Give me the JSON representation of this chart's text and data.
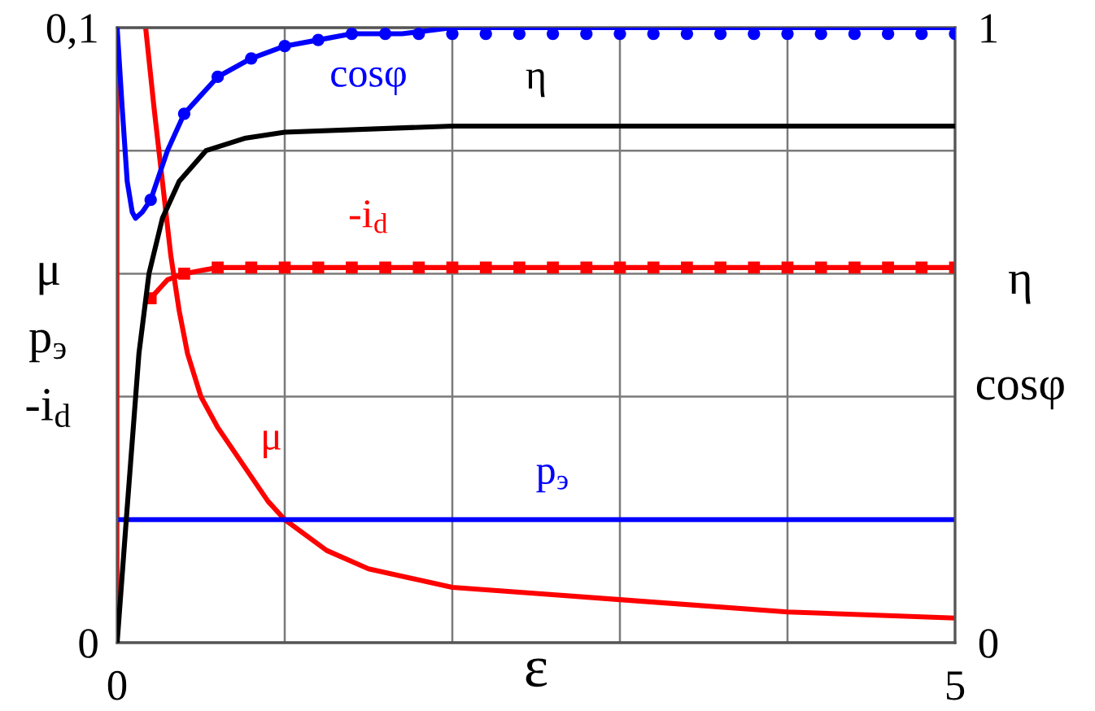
{
  "chart_data": {
    "type": "line",
    "xlabel": "ε",
    "ylabel": "μ\np$_{э}$\n-i$_{d}$",
    "y2label": "η\ncosφ",
    "xlim": [
      0,
      5
    ],
    "xticks": [
      0,
      {
        "value": 1,
        "label": null
      },
      {
        "value": 2,
        "label": null
      },
      {
        "value": 3,
        "label": null
      },
      {
        "value": 4,
        "label": null
      },
      5
    ],
    "ylim": [
      0,
      0.1
    ],
    "yticks": [
      0,
      {
        "value": 0.02,
        "label": null
      },
      {
        "value": 0.04,
        "label": null
      },
      {
        "value": 0.06,
        "label": null
      },
      {
        "value": 0.08,
        "label": null
      },
      {
        "value": 0.1,
        "label": "0,1"
      }
    ],
    "y2lim": [
      0,
      1
    ],
    "y2ticks": [
      0,
      1
    ],
    "grid": true,
    "ref_lines": [
      {
        "axis": "x",
        "value": 0,
        "color": "#ff0000"
      }
    ],
    "series": [
      {
        "name": "cosφ",
        "axis": "y2",
        "color": "#0000ff",
        "x": [
          0,
          0.03,
          0.06,
          0.09,
          0.11,
          0.15,
          0.2,
          0.3,
          0.4,
          0.5,
          0.6,
          0.8,
          1.0,
          1.2,
          1.4,
          1.7,
          2,
          5
        ],
        "values": [
          1.0,
          0.87,
          0.75,
          0.7,
          0.69,
          0.7,
          0.72,
          0.8,
          0.86,
          0.89,
          0.92,
          0.95,
          0.97,
          0.98,
          0.99,
          0.99,
          1.0,
          1.0
        ]
      },
      {
        "type": "scatter",
        "axis": "y2",
        "marker": "circle",
        "color": "#0000ff",
        "x": [
          0.2,
          0.4,
          0.6,
          0.8,
          1.0,
          1.2,
          1.4,
          1.6,
          1.8,
          2.0,
          2.2,
          2.4,
          2.6,
          2.8,
          3.0,
          3.2,
          3.4,
          3.6,
          3.8,
          4.0,
          4.2,
          4.4,
          4.6,
          4.8,
          5.0
        ],
        "values": [
          0.72,
          0.86,
          0.92,
          0.95,
          0.97,
          0.98,
          0.99,
          0.99,
          0.99,
          0.99,
          0.99,
          0.99,
          0.99,
          0.99,
          0.99,
          0.99,
          0.99,
          0.99,
          0.99,
          0.99,
          0.99,
          0.99,
          0.99,
          0.99,
          0.99
        ]
      },
      {
        "name": "η",
        "axis": "y2",
        "color": "#000000",
        "x": [
          0,
          0.06,
          0.13,
          0.19,
          0.27,
          0.37,
          0.53,
          0.76,
          1.0,
          2,
          5
        ],
        "values": [
          0,
          0.22,
          0.47,
          0.6,
          0.69,
          0.75,
          0.8,
          0.82,
          0.83,
          0.84,
          0.84
        ]
      },
      {
        "name": "-i$_{d}$",
        "axis": "y",
        "color": "#ff0000",
        "x": [
          0.2,
          0.3,
          0.4,
          0.6,
          5
        ],
        "values": [
          0.056,
          0.059,
          0.06,
          0.061,
          0.061
        ]
      },
      {
        "type": "scatter",
        "axis": "y",
        "marker": "square",
        "color": "#ff0000",
        "x": [
          0.2,
          0.4,
          0.6,
          0.8,
          1.0,
          1.2,
          1.4,
          1.6,
          1.8,
          2.0,
          2.2,
          2.4,
          2.6,
          2.8,
          3.0,
          3.2,
          3.4,
          3.6,
          3.8,
          4.0,
          4.2,
          4.4,
          4.6,
          4.8,
          5.0
        ],
        "values": [
          0.056,
          0.06,
          0.061,
          0.061,
          0.061,
          0.061,
          0.061,
          0.061,
          0.061,
          0.061,
          0.061,
          0.061,
          0.061,
          0.061,
          0.061,
          0.061,
          0.061,
          0.061,
          0.061,
          0.061,
          0.061,
          0.061,
          0.061,
          0.061,
          0.061
        ]
      },
      {
        "name": "μ",
        "axis": "y",
        "color": "#ff0000",
        "x": [
          0.17,
          0.22,
          0.27,
          0.32,
          0.37,
          0.42,
          0.5,
          0.6,
          0.7,
          0.8,
          0.9,
          1.0,
          1.25,
          1.5,
          2,
          2.5,
          3,
          4,
          5
        ],
        "values": [
          0.1,
          0.087,
          0.075,
          0.063,
          0.054,
          0.047,
          0.04,
          0.035,
          0.031,
          0.027,
          0.023,
          0.02,
          0.015,
          0.012,
          0.009,
          0.008,
          0.007,
          0.005,
          0.004
        ]
      },
      {
        "name": "p$_{э}$",
        "axis": "y",
        "color": "#0000ff",
        "x": [
          0,
          5
        ],
        "values": [
          0.02,
          0.02
        ]
      }
    ]
  }
}
